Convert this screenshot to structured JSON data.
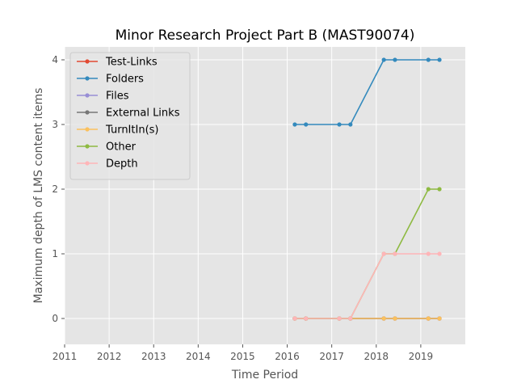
{
  "chart_data": {
    "type": "line",
    "title": "Minor Research Project Part B (MAST90074)",
    "xlabel": "Time Period",
    "ylabel": "Maximum depth of LMS content items",
    "xlim": [
      2011,
      2020
    ],
    "ylim": [
      -0.4,
      4.2
    ],
    "xticks": [
      "2011",
      "2012",
      "2013",
      "2014",
      "2015",
      "2016",
      "2017",
      "2018",
      "2019"
    ],
    "yticks": [
      "0",
      "1",
      "2",
      "3",
      "4"
    ],
    "grid": true,
    "legend_position": "top-left",
    "x": [
      2016.17,
      2016.42,
      2017.17,
      2017.42,
      2018.17,
      2018.42,
      2019.17,
      2019.42
    ],
    "series": [
      {
        "name": "Test-Links",
        "color": "#e24a33",
        "values": [
          0,
          0,
          0,
          0,
          0,
          0,
          0,
          0
        ]
      },
      {
        "name": "Folders",
        "color": "#348abd",
        "values": [
          3,
          3,
          3,
          3,
          4,
          4,
          4,
          4
        ]
      },
      {
        "name": "Files",
        "color": "#988ed5",
        "values": [
          0,
          0,
          0,
          0,
          0,
          0,
          0,
          0
        ]
      },
      {
        "name": "External Links",
        "color": "#777777",
        "values": [
          0,
          0,
          0,
          0,
          0,
          0,
          0,
          0
        ]
      },
      {
        "name": "TurnItIn(s)",
        "color": "#fbc15e",
        "values": [
          0,
          0,
          0,
          0,
          0,
          0,
          0,
          0
        ]
      },
      {
        "name": "Other",
        "color": "#8eba42",
        "values": [
          0,
          0,
          0,
          0,
          1,
          1,
          2,
          2
        ]
      },
      {
        "name": "Depth",
        "color": "#ffb5b8",
        "values": [
          0,
          0,
          0,
          0,
          1,
          1,
          1,
          1
        ]
      }
    ]
  }
}
